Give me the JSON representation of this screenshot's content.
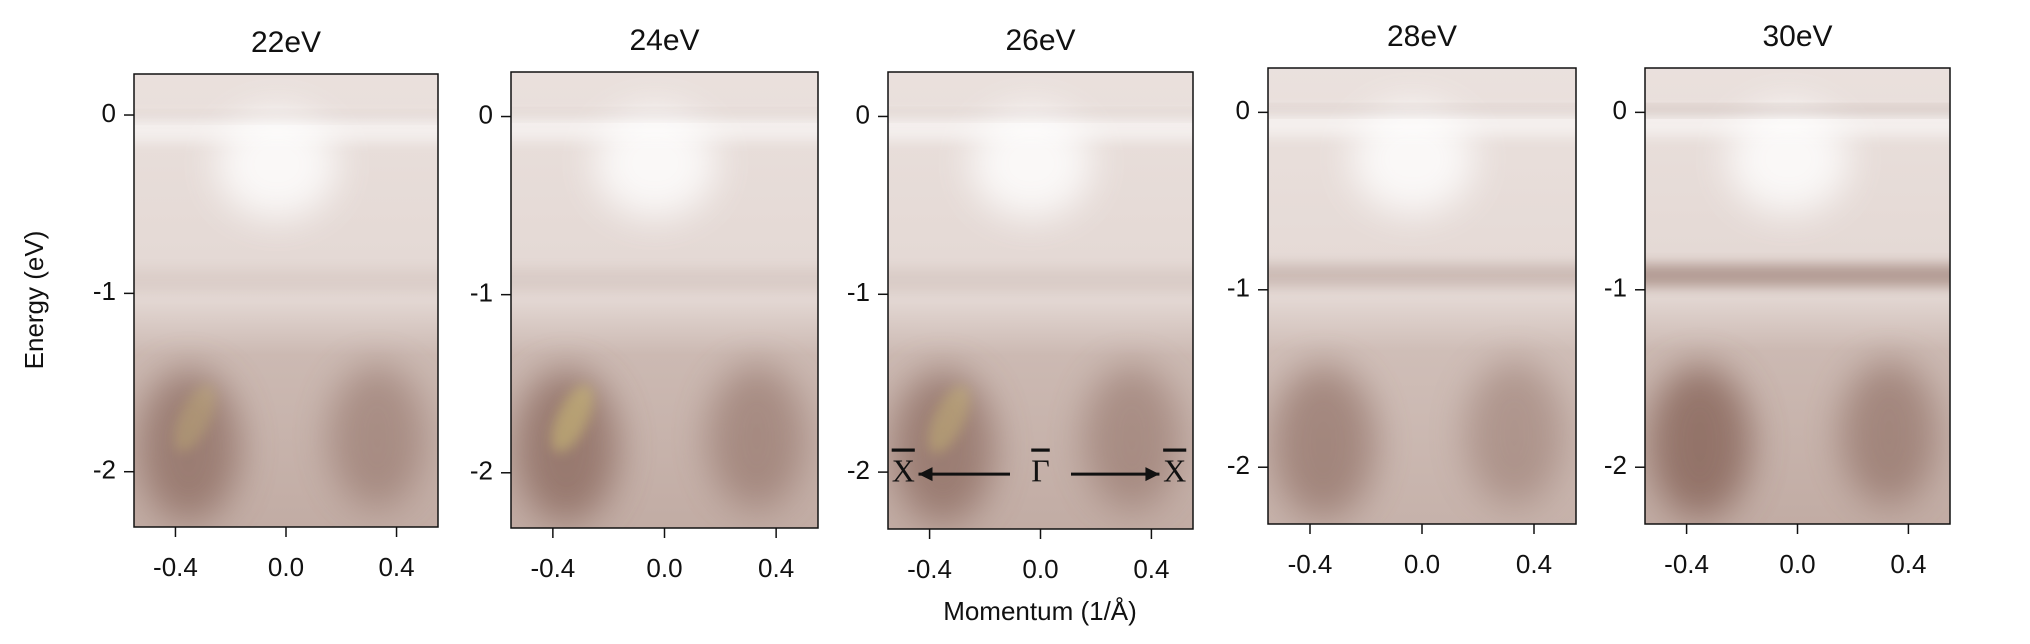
{
  "chart_data": [
    {
      "type": "image",
      "title": "22eV",
      "ylabel": "Energy (eV)",
      "xlim": [
        -0.55,
        0.55
      ],
      "ylim": [
        -2.31,
        0.23
      ],
      "xticks": [
        -0.4,
        {
          "value": 0,
          "label": "0.0"
        },
        0.4
      ],
      "yticks": [
        0,
        -1,
        -2
      ]
    },
    {
      "type": "image",
      "title": "24eV",
      "xlim": [
        -0.55,
        0.55
      ],
      "ylim": [
        -2.31,
        0.25
      ],
      "xticks": [
        -0.4,
        {
          "value": 0,
          "label": "0.0"
        },
        0.4
      ],
      "yticks": [
        0,
        -1,
        -2
      ]
    },
    {
      "type": "image",
      "title": "26eV",
      "xlabel": "Momentum (1/Å)",
      "xlim": [
        -0.55,
        0.55
      ],
      "ylim": [
        -2.32,
        0.25
      ],
      "xticks": [
        -0.4,
        {
          "value": 0,
          "label": "0.0"
        },
        0.4
      ],
      "yticks": [
        0,
        -1,
        -2
      ],
      "annotations": [
        "X",
        "Γ",
        "X"
      ]
    },
    {
      "type": "image",
      "title": "28eV",
      "xlim": [
        -0.55,
        0.55
      ],
      "ylim": [
        -2.32,
        0.25
      ],
      "xticks": [
        -0.4,
        {
          "value": 0,
          "label": "0.0"
        },
        0.4
      ],
      "yticks": [
        0,
        -1,
        -2
      ]
    },
    {
      "type": "image",
      "title": "30eV",
      "xlim": [
        -0.55,
        0.55
      ],
      "ylim": [
        -2.32,
        0.25
      ],
      "xticks": [
        -0.4,
        {
          "value": 0,
          "label": "0.0"
        },
        0.4
      ],
      "yticks": [
        0,
        -1,
        -2
      ]
    }
  ]
}
